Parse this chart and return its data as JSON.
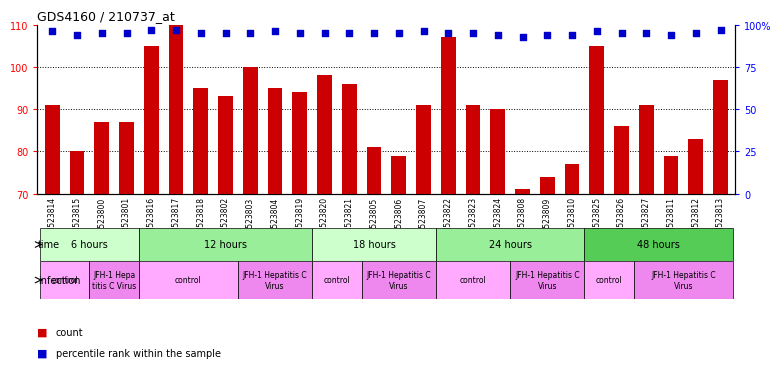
{
  "title": "GDS4160 / 210737_at",
  "samples": [
    "GSM523814",
    "GSM523815",
    "GSM523800",
    "GSM523801",
    "GSM523816",
    "GSM523817",
    "GSM523818",
    "GSM523802",
    "GSM523803",
    "GSM523804",
    "GSM523819",
    "GSM523820",
    "GSM523821",
    "GSM523805",
    "GSM523806",
    "GSM523807",
    "GSM523822",
    "GSM523823",
    "GSM523824",
    "GSM523808",
    "GSM523809",
    "GSM523810",
    "GSM523825",
    "GSM523826",
    "GSM523827",
    "GSM523811",
    "GSM523812",
    "GSM523813"
  ],
  "counts": [
    91,
    80,
    87,
    87,
    105,
    110,
    95,
    93,
    100,
    95,
    94,
    98,
    96,
    81,
    79,
    91,
    107,
    91,
    90,
    71,
    74,
    77,
    105,
    86,
    91,
    79,
    83,
    97
  ],
  "percentiles": [
    96,
    94,
    95,
    95,
    97,
    97,
    95,
    95,
    95,
    96,
    95,
    95,
    95,
    95,
    95,
    96,
    95,
    95,
    94,
    93,
    94,
    94,
    96,
    95,
    95,
    94,
    95,
    97
  ],
  "ylim_left": [
    70,
    110
  ],
  "ylim_right": [
    0,
    100
  ],
  "yticks_left": [
    70,
    80,
    90,
    100,
    110
  ],
  "yticks_right": [
    0,
    25,
    50,
    75,
    100
  ],
  "ytick_labels_right": [
    "0",
    "25",
    "50",
    "75",
    "100%"
  ],
  "bar_color": "#cc0000",
  "dot_color": "#0000cc",
  "bg_color": "#ffffff",
  "time_groups": [
    {
      "label": "6 hours",
      "start": 0,
      "end": 3,
      "color": "#ccffcc"
    },
    {
      "label": "12 hours",
      "start": 4,
      "end": 10,
      "color": "#99ee99"
    },
    {
      "label": "18 hours",
      "start": 11,
      "end": 15,
      "color": "#ccffcc"
    },
    {
      "label": "24 hours",
      "start": 16,
      "end": 21,
      "color": "#99ee99"
    },
    {
      "label": "48 hours",
      "start": 22,
      "end": 27,
      "color": "#55cc55"
    }
  ],
  "infection_groups": [
    {
      "label": "control",
      "start": 0,
      "end": 1,
      "color": "#ffaaff"
    },
    {
      "label": "JFH-1 Hepa\ntitis C Virus",
      "start": 2,
      "end": 3,
      "color": "#ee88ee"
    },
    {
      "label": "control",
      "start": 4,
      "end": 7,
      "color": "#ffaaff"
    },
    {
      "label": "JFH-1 Hepatitis C\nVirus",
      "start": 8,
      "end": 10,
      "color": "#ee88ee"
    },
    {
      "label": "control",
      "start": 11,
      "end": 12,
      "color": "#ffaaff"
    },
    {
      "label": "JFH-1 Hepatitis C\nVirus",
      "start": 13,
      "end": 15,
      "color": "#ee88ee"
    },
    {
      "label": "control",
      "start": 16,
      "end": 18,
      "color": "#ffaaff"
    },
    {
      "label": "JFH-1 Hepatitis C\nVirus",
      "start": 19,
      "end": 21,
      "color": "#ee88ee"
    },
    {
      "label": "control",
      "start": 22,
      "end": 23,
      "color": "#ffaaff"
    },
    {
      "label": "JFH-1 Hepatitis C\nVirus",
      "start": 24,
      "end": 27,
      "color": "#ee88ee"
    }
  ]
}
